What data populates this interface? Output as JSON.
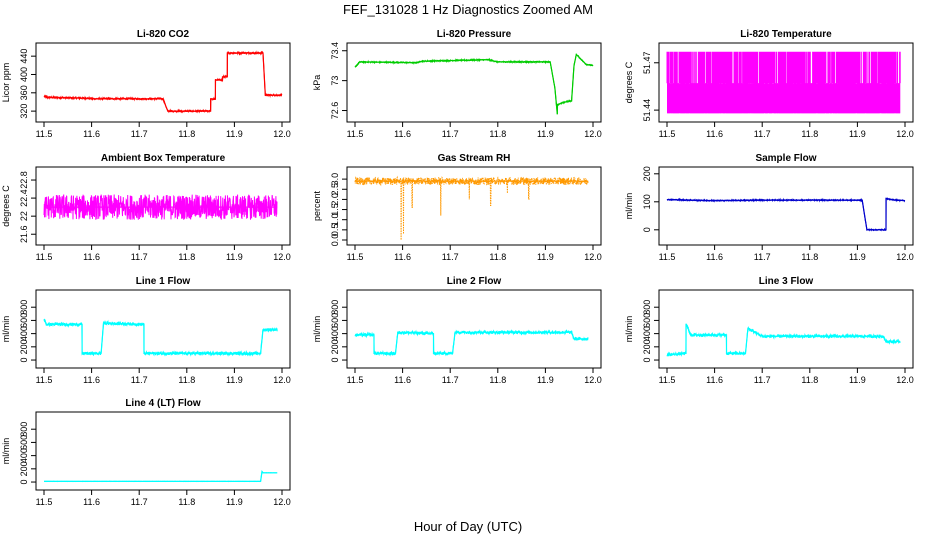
{
  "figure": {
    "title": "FEF_131028  1 Hz Diagnostics Zoomed AM",
    "xlabel": "Hour of Day (UTC)"
  },
  "chart_data": [
    {
      "type": "line",
      "title": "Li-820 CO2",
      "ylabel": "Licor ppm",
      "color": "#ff0000",
      "xlim": [
        11.5,
        12.0
      ],
      "ylim": [
        305,
        460
      ],
      "xticks": [
        "11.5",
        "11.6",
        "11.7",
        "11.8",
        "11.9",
        "12.0"
      ],
      "yticks": [
        320,
        360,
        400,
        440
      ],
      "x": [
        11.5,
        11.505,
        11.505,
        11.6,
        11.6,
        11.75,
        11.76,
        11.76,
        11.85,
        11.85,
        11.86,
        11.86,
        11.875,
        11.875,
        11.885,
        11.885,
        11.96,
        11.965,
        12.0
      ],
      "y": [
        352,
        352,
        350,
        348,
        347,
        347,
        320,
        320,
        320,
        347,
        346,
        388,
        388,
        395,
        395,
        447,
        447,
        355,
        355
      ],
      "noise": 2
    },
    {
      "type": "line",
      "title": "Li-820 Pressure",
      "ylabel": "kPa",
      "color": "#00cc00",
      "xlim": [
        11.5,
        12.0
      ],
      "ylim": [
        72.5,
        73.45
      ],
      "xticks": [
        "11.5",
        "11.6",
        "11.7",
        "11.8",
        "11.9",
        "12.0"
      ],
      "yticks": [
        72.6,
        73.0,
        73.4
      ],
      "x": [
        11.5,
        11.51,
        11.63,
        11.64,
        11.78,
        11.8,
        11.91,
        11.92,
        11.925,
        11.925,
        11.945,
        11.955,
        11.96,
        11.965,
        11.985,
        12.0
      ],
      "y": [
        73.18,
        73.25,
        73.24,
        73.26,
        73.28,
        73.25,
        73.25,
        72.9,
        72.55,
        72.68,
        72.72,
        72.73,
        73.2,
        73.35,
        73.22,
        73.2
      ],
      "noise": 0.008
    },
    {
      "type": "line",
      "title": "Li-820 Temperature",
      "ylabel": "degrees C",
      "color": "#ff00ff",
      "xlim": [
        11.5,
        12.0
      ],
      "ylim": [
        51.435,
        51.48
      ],
      "xticks": [
        "11.5",
        "11.6",
        "11.7",
        "11.8",
        "11.9",
        "12.0"
      ],
      "yticks": [
        51.44,
        51.47
      ],
      "x": [
        11.5,
        11.99
      ],
      "y": [
        51.455,
        51.455
      ],
      "band": {
        "levels": [
          51.438,
          51.457,
          51.477
        ]
      }
    },
    {
      "type": "line",
      "title": "Ambient Box Temperature",
      "ylabel": "degrees C",
      "color": "#ff00ff",
      "xlim": [
        11.5,
        12.0
      ],
      "ylim": [
        21.45,
        23.0
      ],
      "xticks": [
        "11.5",
        "11.6",
        "11.7",
        "11.8",
        "11.9",
        "12.0"
      ],
      "yticks": [
        21.6,
        22.0,
        22.4,
        22.8
      ],
      "x": [
        11.5,
        11.99
      ],
      "y": [
        22.2,
        22.2
      ],
      "noise": 0.28
    },
    {
      "type": "line",
      "title": "Gas Stream RH",
      "ylabel": "percent",
      "color": "#ff9900",
      "xlim": [
        11.5,
        12.0
      ],
      "ylim": [
        -0.05,
        3.4
      ],
      "xticks": [
        "11.5",
        "11.6",
        "11.7",
        "11.8",
        "11.9",
        "12.0"
      ],
      "yticks": [
        0.0,
        0.5,
        1.0,
        1.5,
        2.0,
        2.5,
        3.0
      ],
      "x": [
        11.5,
        11.99
      ],
      "y": [
        2.9,
        2.9
      ],
      "noise": 0.18,
      "dips": [
        [
          11.597,
          0.0
        ],
        [
          11.602,
          0.3
        ],
        [
          11.62,
          1.6
        ],
        [
          11.68,
          1.2
        ],
        [
          11.74,
          2.0
        ],
        [
          11.785,
          1.7
        ],
        [
          11.82,
          2.3
        ],
        [
          11.865,
          2.0
        ]
      ]
    },
    {
      "type": "line",
      "title": "Sample Flow",
      "ylabel": "ml/min",
      "color": "#0000cc",
      "xlim": [
        11.5,
        12.0
      ],
      "ylim": [
        -40,
        210
      ],
      "xticks": [
        "11.5",
        "11.6",
        "11.7",
        "11.8",
        "11.9",
        "12.0"
      ],
      "yticks": [
        0,
        100,
        200
      ],
      "x": [
        11.5,
        11.6,
        11.7,
        11.8,
        11.91,
        11.92,
        11.955,
        11.96,
        11.96,
        11.97,
        12.0
      ],
      "y": [
        108,
        104,
        106,
        106,
        106,
        0,
        0,
        0,
        112,
        108,
        104
      ],
      "noise": 2
    },
    {
      "type": "line",
      "title": "Line 1 Flow",
      "ylabel": "ml/min",
      "color": "#00ffff",
      "xlim": [
        11.5,
        12.0
      ],
      "ylim": [
        -60,
        1000
      ],
      "xticks": [
        "11.5",
        "11.6",
        "11.7",
        "11.8",
        "11.9",
        "12.0"
      ],
      "yticks": [
        0,
        200,
        400,
        600,
        800
      ],
      "x": [
        11.5,
        11.505,
        11.58,
        11.58,
        11.62,
        11.625,
        11.71,
        11.71,
        11.955,
        11.96,
        11.99
      ],
      "y": [
        620,
        540,
        540,
        100,
        100,
        560,
        540,
        100,
        100,
        460,
        460
      ],
      "noise": 25
    },
    {
      "type": "line",
      "title": "Line 2 Flow",
      "ylabel": "ml/min",
      "color": "#00ffff",
      "xlim": [
        11.5,
        12.0
      ],
      "ylim": [
        -60,
        1000
      ],
      "xticks": [
        "11.5",
        "11.6",
        "11.7",
        "11.8",
        "11.9",
        "12.0"
      ],
      "yticks": [
        0,
        200,
        400,
        600,
        800
      ],
      "x": [
        11.5,
        11.54,
        11.54,
        11.585,
        11.59,
        11.665,
        11.665,
        11.705,
        11.71,
        11.955,
        11.96,
        11.99
      ],
      "y": [
        380,
        380,
        100,
        100,
        420,
        400,
        100,
        100,
        420,
        420,
        320,
        320
      ],
      "noise": 25
    },
    {
      "type": "line",
      "title": "Line 3 Flow",
      "ylabel": "ml/min",
      "color": "#00ffff",
      "xlim": [
        11.5,
        12.0
      ],
      "ylim": [
        -60,
        1000
      ],
      "xticks": [
        "11.5",
        "11.6",
        "11.7",
        "11.8",
        "11.9",
        "12.0"
      ],
      "yticks": [
        0,
        200,
        400,
        600,
        800
      ],
      "x": [
        11.5,
        11.54,
        11.54,
        11.55,
        11.625,
        11.625,
        11.665,
        11.67,
        11.7,
        11.955,
        11.96,
        11.99
      ],
      "y": [
        80,
        100,
        550,
        380,
        380,
        100,
        100,
        480,
        360,
        360,
        280,
        280
      ],
      "noise": 25
    },
    {
      "type": "line",
      "title": "Line 4 (LT) Flow",
      "ylabel": "ml/min",
      "color": "#00ffff",
      "xlim": [
        11.5,
        12.0
      ],
      "ylim": [
        -60,
        1000
      ],
      "xticks": [
        "11.5",
        "11.6",
        "11.7",
        "11.8",
        "11.9",
        "12.0"
      ],
      "yticks": [
        0,
        200,
        400,
        600,
        800
      ],
      "x": [
        11.5,
        11.955,
        11.958,
        11.96,
        11.99
      ],
      "y": [
        10,
        10,
        160,
        140,
        140
      ],
      "noise": 2
    }
  ]
}
